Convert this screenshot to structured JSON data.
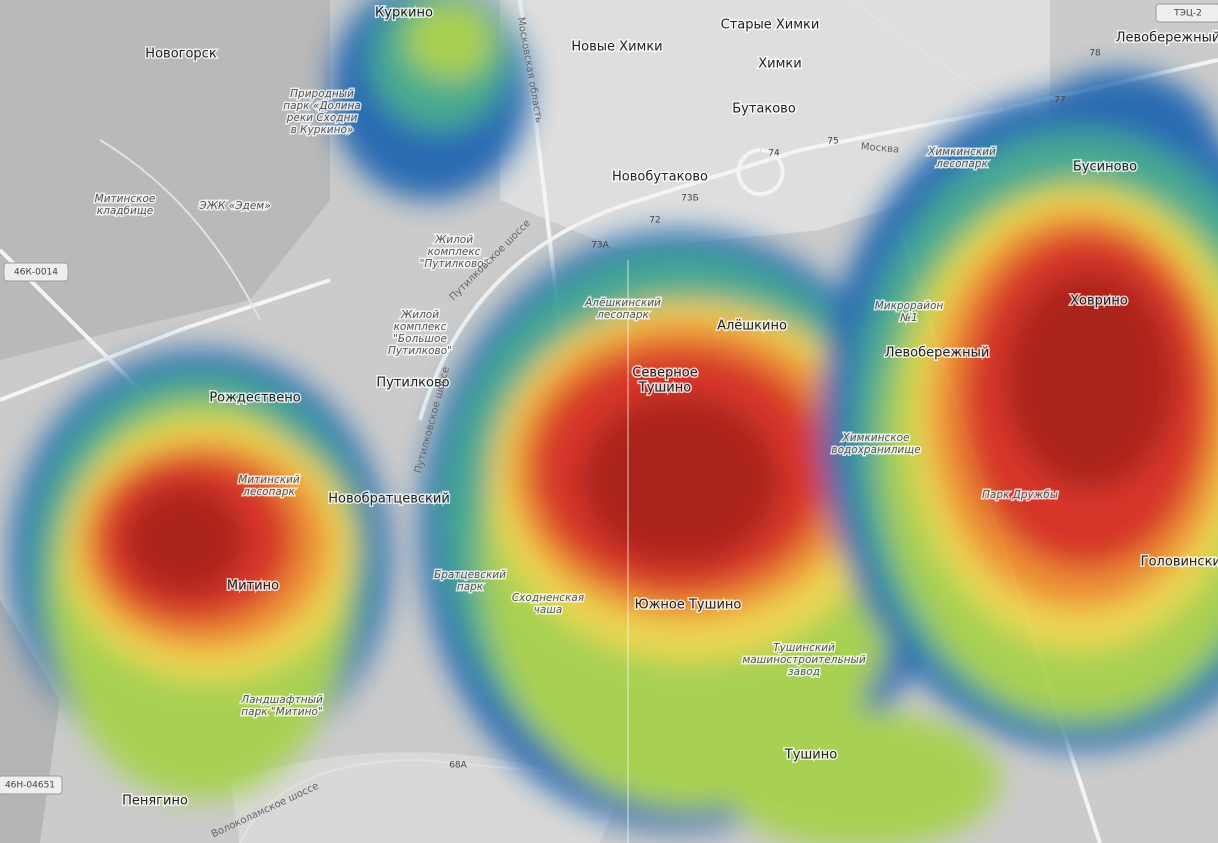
{
  "places": [
    {
      "lines": [
        "Куркино"
      ]
    },
    {
      "lines": [
        "Новые Химки"
      ]
    },
    {
      "lines": [
        "Старые Химки"
      ]
    },
    {
      "lines": [
        "Левобережный"
      ]
    },
    {
      "lines": [
        "Химки"
      ]
    },
    {
      "lines": [
        "Новогорск"
      ]
    },
    {
      "lines": [
        "Природный",
        "парк «Долина",
        "реки Сходни",
        "в Куркино»"
      ],
      "italic": true
    },
    {
      "lines": [
        "Бутаково"
      ]
    },
    {
      "lines": [
        "Новобутаково"
      ]
    },
    {
      "lines": [
        "Митинское",
        "кладбище"
      ],
      "italic": true
    },
    {
      "lines": [
        "ЭЖК «Эдем»"
      ],
      "italic": true
    },
    {
      "lines": [
        "Жилой",
        "комплекс",
        "\"Путилково\""
      ],
      "italic": true
    },
    {
      "lines": [
        "Жилой",
        "комплекс",
        "\"Большое",
        "Путилково\""
      ],
      "italic": true
    },
    {
      "lines": [
        "Путилково"
      ]
    },
    {
      "lines": [
        "Рождествено"
      ]
    },
    {
      "lines": [
        "Новобратцевский"
      ]
    },
    {
      "lines": [
        "Митинский",
        "лесопарк"
      ],
      "italic": true
    },
    {
      "lines": [
        "Митино"
      ]
    },
    {
      "lines": [
        "Ландшафтный",
        "парк \"Митино\""
      ],
      "italic": true
    },
    {
      "lines": [
        "Пенягино"
      ]
    },
    {
      "lines": [
        "Алёшкинский",
        "лесопарк"
      ],
      "italic": true
    },
    {
      "lines": [
        "Алёшкино"
      ]
    },
    {
      "lines": [
        "Северное",
        "Тушино"
      ]
    },
    {
      "lines": [
        "Южное Тушино"
      ]
    },
    {
      "lines": [
        "Братцевский",
        "парк"
      ],
      "italic": true
    },
    {
      "lines": [
        "Сходненская",
        "чаша"
      ],
      "italic": true
    },
    {
      "lines": [
        "Тушинский",
        "машиностроительный",
        "завод"
      ],
      "italic": true
    },
    {
      "lines": [
        "Тушино"
      ]
    },
    {
      "lines": [
        "Бусиново"
      ]
    },
    {
      "lines": [
        "Ховрино"
      ]
    },
    {
      "lines": [
        "Левобережный"
      ]
    },
    {
      "lines": [
        "Микрорайон",
        "№1"
      ],
      "italic": true
    },
    {
      "lines": [
        "Химкинское",
        "водохранилище"
      ],
      "italic": true
    },
    {
      "lines": [
        "Парк Дружбы"
      ],
      "italic": true
    },
    {
      "lines": [
        "Головинский"
      ]
    },
    {
      "lines": [
        "Химкинский",
        "лесопарк"
      ],
      "italic": true
    }
  ],
  "roads": [
    "Путилковское шоссе",
    "Путилковское шоссе",
    "Московская область",
    "Москва",
    "Волоколамское шоссе"
  ],
  "shields": [
    "46К-0014",
    "46Н-04651",
    "ТЭЦ-2"
  ],
  "route_numbers": [
    72,
    "73А",
    "73Б",
    74,
    75,
    77,
    78,
    "68А"
  ]
}
